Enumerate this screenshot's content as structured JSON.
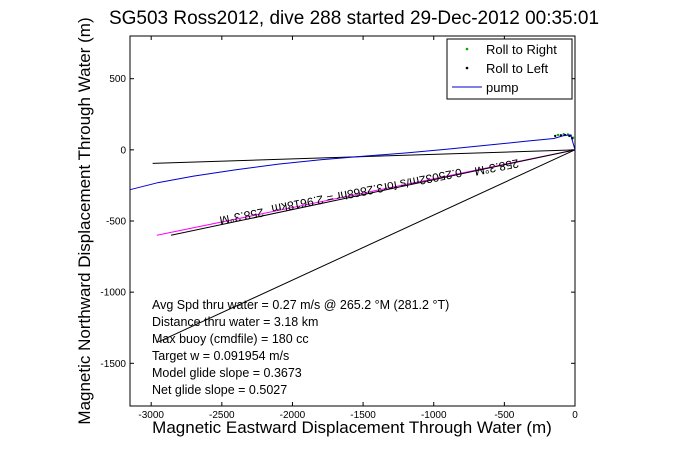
{
  "chart_data": {
    "type": "line",
    "title": "SG503 Ross2012, dive 288 started 29-Dec-2012 00:35:01",
    "xlabel": "Magnetic Eastward Displacement Through Water (m)",
    "ylabel": "Magnetic Northward Displacement Through Water (m)",
    "xlim": [
      -3150,
      0
    ],
    "ylim": [
      -1800,
      800
    ],
    "xticks": [
      -3000,
      -2500,
      -2000,
      -1500,
      -1000,
      -500,
      0
    ],
    "yticks": [
      -1500,
      -1000,
      -500,
      0,
      500
    ],
    "grid": false,
    "legend_position": "top-right",
    "series": [
      {
        "name": "Roll to Right",
        "color": "#00aa00",
        "marker": "dot",
        "x": [
          -120,
          -80,
          -50,
          -30,
          -15
        ],
        "y": [
          105,
          110,
          108,
          100,
          85
        ]
      },
      {
        "name": "Roll to Left",
        "color": "#000000",
        "marker": "dot",
        "x": [
          -140,
          -100,
          -70,
          -40,
          -20
        ],
        "y": [
          98,
          102,
          104,
          98,
          80
        ]
      },
      {
        "name": "pump",
        "color": "#0000cc",
        "marker": "line",
        "x": [
          -3150,
          -2950,
          -2700,
          -2400,
          -2100,
          -1800,
          -1500,
          -1200,
          -900,
          -600,
          -350,
          -150,
          -80,
          -30,
          0
        ],
        "y": [
          -280,
          -230,
          -185,
          -140,
          -100,
          -70,
          -45,
          -22,
          5,
          35,
          60,
          80,
          100,
          105,
          0
        ]
      }
    ],
    "reference_lines": [
      {
        "color": "#000000",
        "x": [
          -2990,
          0
        ],
        "y": [
          -95,
          0
        ]
      },
      {
        "color": "#000000",
        "x": [
          -2950,
          0
        ],
        "y": [
          -1350,
          0
        ]
      },
      {
        "color": "#ff00ff",
        "x": [
          -2960,
          0
        ],
        "y": [
          -600,
          0
        ]
      },
      {
        "color": "#000000",
        "x": [
          -2860,
          0
        ],
        "y": [
          -600,
          0
        ]
      }
    ],
    "annotations": [
      {
        "text": "258.3°M",
        "x": -2365,
        "y": -440,
        "rotation": -11
      },
      {
        "text": "0.25032m/s for3.2868hr = 2.9618km",
        "x": -1480,
        "y": -260,
        "rotation": -11
      },
      {
        "text": "258.3°M",
        "x": -560,
        "y": -95,
        "rotation": -11
      }
    ],
    "stats_text": [
      "Avg Spd thru water = 0.27 m/s @ 265.2   °M (281.2 °T)",
      "Distance thru water = 3.18 km",
      "Max buoy (cmdfile) = 180 cc",
      "Target w = 0.091954 m/s",
      "Model glide slope = 0.3673",
      "Net glide slope = 0.5027"
    ]
  }
}
